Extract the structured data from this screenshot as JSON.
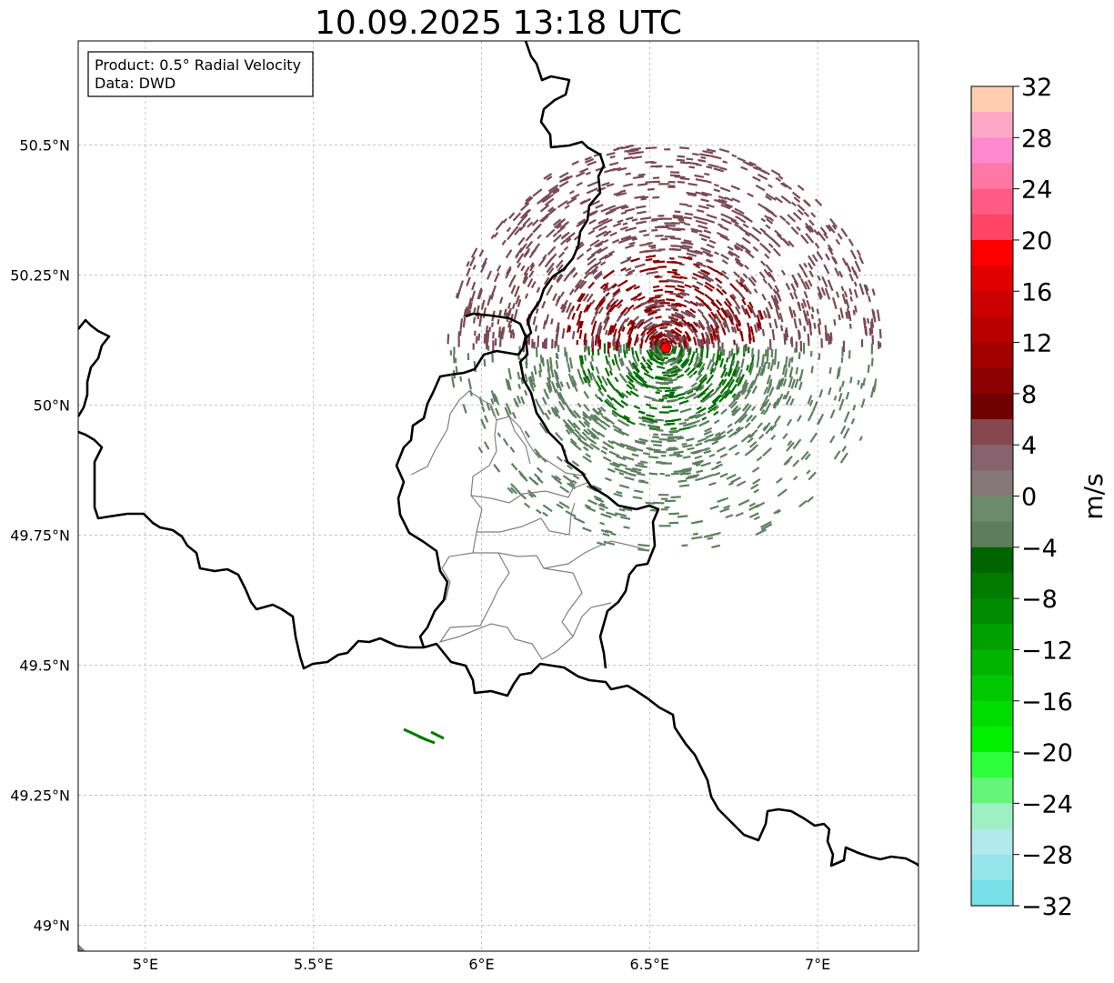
{
  "title": "10.09.2025 13:18 UTC",
  "info_box": {
    "line1": "Product: 0.5° Radial Velocity",
    "line2": "Data: DWD"
  },
  "map": {
    "extent": {
      "lon_min": 4.8,
      "lon_max": 7.3,
      "lat_min": 48.95,
      "lat_max": 50.7
    },
    "lon_ticks": [
      {
        "value": 5.0,
        "label": "5°E"
      },
      {
        "value": 5.5,
        "label": "5.5°E"
      },
      {
        "value": 6.0,
        "label": "6°E"
      },
      {
        "value": 6.5,
        "label": "6.5°E"
      },
      {
        "value": 7.0,
        "label": "7°E"
      }
    ],
    "lat_ticks": [
      {
        "value": 49.0,
        "label": "49°N"
      },
      {
        "value": 49.25,
        "label": "49.25°N"
      },
      {
        "value": 49.5,
        "label": "49.5°N"
      },
      {
        "value": 49.75,
        "label": "49.75°N"
      },
      {
        "value": 50.0,
        "label": "50°N"
      },
      {
        "value": 50.25,
        "label": "50.25°N"
      },
      {
        "value": 50.5,
        "label": "50.5°N"
      }
    ],
    "gridlines": true,
    "radar_site": {
      "lon": 6.548,
      "lat": 50.11,
      "color": "#ff0000"
    },
    "colors": {
      "border": "#000000",
      "admin_lines": "#808080",
      "outbound": "#7a4a55",
      "outbound_strong": "#8b0000",
      "inbound": "#5e8060",
      "inbound_strong": "#007000"
    }
  },
  "colorbar": {
    "label": "m/s",
    "min": -32,
    "max": 32,
    "ticks": [
      {
        "value": 32,
        "label": "32"
      },
      {
        "value": 28,
        "label": "28"
      },
      {
        "value": 24,
        "label": "24"
      },
      {
        "value": 20,
        "label": "20"
      },
      {
        "value": 16,
        "label": "16"
      },
      {
        "value": 12,
        "label": "12"
      },
      {
        "value": 8,
        "label": "8"
      },
      {
        "value": 4,
        "label": "4"
      },
      {
        "value": 0,
        "label": "0"
      },
      {
        "value": -4,
        "label": "−4"
      },
      {
        "value": -8,
        "label": "−8"
      },
      {
        "value": -12,
        "label": "−12"
      },
      {
        "value": -16,
        "label": "−16"
      },
      {
        "value": -20,
        "label": "−20"
      },
      {
        "value": -24,
        "label": "−24"
      },
      {
        "value": -28,
        "label": "−28"
      },
      {
        "value": -32,
        "label": "−32"
      }
    ],
    "bins_top_to_bottom": [
      "#ffcdb2",
      "#ffa8c6",
      "#ff89cf",
      "#ff77a5",
      "#ff5a85",
      "#ff4466",
      "#ff0000",
      "#e00000",
      "#cc0000",
      "#b80000",
      "#a30000",
      "#8b0000",
      "#700000",
      "#87474f",
      "#86636f",
      "#867878",
      "#6c8a6c",
      "#5d7d5b",
      "#006400",
      "#007a00",
      "#008c00",
      "#00a000",
      "#00b400",
      "#00c800",
      "#00dc00",
      "#00f000",
      "#2dff3c",
      "#66f57a",
      "#9ef0c3",
      "#b2e9ec",
      "#94e6ec",
      "#78e0e8"
    ]
  }
}
